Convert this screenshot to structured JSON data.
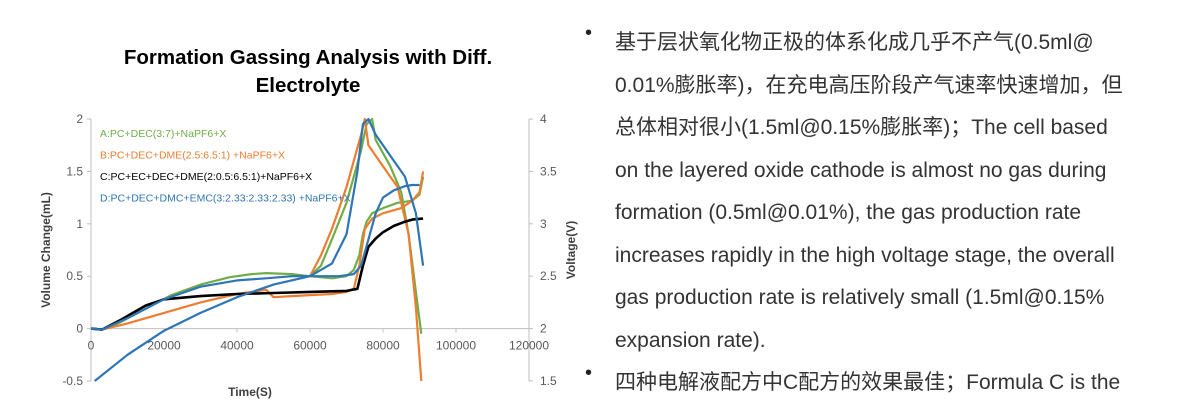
{
  "chart_data": {
    "type": "line",
    "title_lines": [
      "Formation Gassing Analysis with Diff.",
      "Electrolyte"
    ],
    "xlabel": "Time(S)",
    "ylabel_left": "Volume Change(mL)",
    "ylabel_right": "Voltage(V)",
    "xlim": [
      0,
      120000
    ],
    "ylim_left": [
      -0.5,
      2
    ],
    "ylim_right": [
      1.5,
      4
    ],
    "x_ticks": [
      "0",
      "20000",
      "40000",
      "60000",
      "80000",
      "100000",
      "120000"
    ],
    "y_ticks_left": [
      "-0.5",
      "0",
      "0.5",
      "1",
      "1.5",
      "2"
    ],
    "y_ticks_right": [
      "1.5",
      "2",
      "2.5",
      "3",
      "3.5",
      "4"
    ],
    "legend_placement": "top-left",
    "series": [
      {
        "name": "A:PC+DEC(3:7)+NaPF6+X",
        "color": "#70ad47",
        "volume": [
          [
            0,
            0
          ],
          [
            3000,
            -0.01
          ],
          [
            8000,
            0.06
          ],
          [
            15000,
            0.19
          ],
          [
            22000,
            0.32
          ],
          [
            30000,
            0.42
          ],
          [
            38000,
            0.49
          ],
          [
            44000,
            0.52
          ],
          [
            48000,
            0.53
          ],
          [
            55000,
            0.52
          ],
          [
            60000,
            0.5
          ],
          [
            66000,
            0.48
          ],
          [
            70000,
            0.5
          ],
          [
            72000,
            0.56
          ],
          [
            73500,
            0.7
          ],
          [
            74500,
            0.9
          ],
          [
            75500,
            1.02
          ],
          [
            77000,
            1.1
          ],
          [
            80000,
            1.15
          ],
          [
            84000,
            1.2
          ],
          [
            88000,
            1.22
          ],
          [
            90000,
            1.28
          ],
          [
            91000,
            1.45
          ]
        ],
        "voltage": [
          [
            60000,
            2.5
          ],
          [
            63000,
            2.6
          ],
          [
            66000,
            2.85
          ],
          [
            70000,
            3.2
          ],
          [
            74000,
            3.7
          ],
          [
            75500,
            3.95
          ],
          [
            77000,
            4.0
          ],
          [
            78000,
            3.8
          ],
          [
            82000,
            3.55
          ],
          [
            85000,
            3.3
          ],
          [
            87000,
            2.9
          ],
          [
            89000,
            2.35
          ],
          [
            90500,
            1.95
          ]
        ]
      },
      {
        "name": "B:PC+DEC+DME(2.5:6.5:1) +NaPF6+X",
        "color": "#ed7d31",
        "volume": [
          [
            0,
            0
          ],
          [
            3000,
            -0.01
          ],
          [
            10000,
            0.05
          ],
          [
            20000,
            0.15
          ],
          [
            30000,
            0.25
          ],
          [
            40000,
            0.33
          ],
          [
            48000,
            0.37
          ],
          [
            50000,
            0.3
          ],
          [
            55000,
            0.31
          ],
          [
            60000,
            0.32
          ],
          [
            66000,
            0.33
          ],
          [
            70000,
            0.35
          ],
          [
            72000,
            0.38
          ],
          [
            73500,
            0.6
          ],
          [
            75000,
            0.95
          ],
          [
            77000,
            1.05
          ],
          [
            80000,
            1.1
          ],
          [
            85000,
            1.15
          ],
          [
            88000,
            1.22
          ],
          [
            90000,
            1.3
          ],
          [
            91000,
            1.5
          ]
        ],
        "voltage": [
          [
            60000,
            2.5
          ],
          [
            63000,
            2.7
          ],
          [
            66000,
            2.95
          ],
          [
            70000,
            3.35
          ],
          [
            74000,
            3.85
          ],
          [
            75000,
            4.0
          ],
          [
            76000,
            3.75
          ],
          [
            80000,
            3.55
          ],
          [
            84000,
            3.35
          ],
          [
            87000,
            2.9
          ],
          [
            89000,
            2.2
          ],
          [
            90500,
            1.5
          ]
        ]
      },
      {
        "name": "C:PC+EC+DEC+DME(2:0.5:6.5:1)+NaPF6+X",
        "color": "#000000",
        "volume": [
          [
            0,
            0
          ],
          [
            3000,
            -0.01
          ],
          [
            8000,
            0.08
          ],
          [
            15000,
            0.22
          ],
          [
            20000,
            0.28
          ],
          [
            30000,
            0.31
          ],
          [
            40000,
            0.33
          ],
          [
            50000,
            0.34
          ],
          [
            60000,
            0.35
          ],
          [
            70000,
            0.36
          ],
          [
            73000,
            0.38
          ],
          [
            74500,
            0.6
          ],
          [
            76000,
            0.78
          ],
          [
            78000,
            0.86
          ],
          [
            80000,
            0.92
          ],
          [
            83000,
            0.98
          ],
          [
            86000,
            1.02
          ],
          [
            88000,
            1.04
          ],
          [
            91000,
            1.05
          ]
        ],
        "voltage": []
      },
      {
        "name": "D:PC+DEC+DMC+EMC(3:2.33:2.33:2.33) +NaPF6+X",
        "color": "#2e75b6",
        "volume": [
          [
            0,
            0
          ],
          [
            3000,
            -0.01
          ],
          [
            10000,
            0.1
          ],
          [
            20000,
            0.28
          ],
          [
            30000,
            0.4
          ],
          [
            40000,
            0.46
          ],
          [
            48000,
            0.48
          ],
          [
            55000,
            0.5
          ],
          [
            60000,
            0.5
          ],
          [
            68000,
            0.5
          ],
          [
            72000,
            0.52
          ],
          [
            74000,
            0.6
          ],
          [
            76000,
            0.85
          ],
          [
            78000,
            1.1
          ],
          [
            80000,
            1.25
          ],
          [
            83000,
            1.32
          ],
          [
            86000,
            1.36
          ],
          [
            88000,
            1.37
          ],
          [
            90000,
            1.37
          ]
        ],
        "voltage": [
          [
            1000,
            1.5
          ],
          [
            10000,
            1.75
          ],
          [
            20000,
            1.98
          ],
          [
            30000,
            2.15
          ],
          [
            40000,
            2.3
          ],
          [
            50000,
            2.42
          ],
          [
            60000,
            2.5
          ],
          [
            66000,
            2.62
          ],
          [
            70000,
            2.9
          ],
          [
            73000,
            3.5
          ],
          [
            74500,
            3.95
          ],
          [
            76000,
            4.0
          ],
          [
            78000,
            3.85
          ],
          [
            82000,
            3.65
          ],
          [
            86000,
            3.45
          ],
          [
            89000,
            3.1
          ],
          [
            91000,
            2.6
          ]
        ]
      }
    ]
  },
  "bullets": [
    {
      "marker": "•",
      "lines": [
        "基于层状氧化物正极的体系化成几乎不产气(0.5ml@",
        "0.01%膨胀率)，在充电高压阶段产气速率快速增加，但",
        "总体相对很小(1.5ml@0.15%膨胀率)；The cell based",
        "on the layered oxide cathode is almost no gas during",
        "formation (0.5ml@0.01%), the gas production rate",
        "increases rapidly in the high voltage stage, the overall",
        "gas production rate is relatively small (1.5ml@0.15%",
        "expansion rate)."
      ]
    },
    {
      "marker": "•",
      "lines": [
        "四种电解液配方中C配方的效果最佳；Formula C is the"
      ]
    }
  ]
}
